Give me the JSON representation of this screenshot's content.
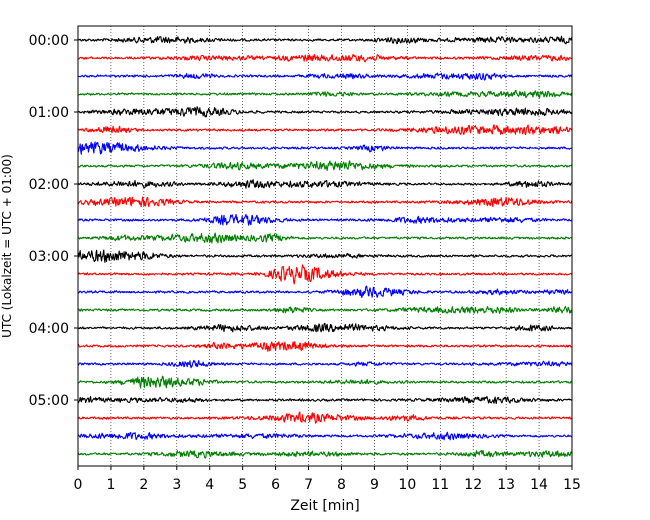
{
  "chart_data": {
    "type": "line",
    "xlabel": "Zeit  [min]",
    "ylabel": "UTC (Lokalzeit = UTC + 01:00)",
    "xlim": [
      0,
      15
    ],
    "x_ticks": [
      "0",
      "1",
      "2",
      "3",
      "4",
      "5",
      "6",
      "7",
      "8",
      "9",
      "10",
      "11",
      "12",
      "13",
      "14",
      "15"
    ],
    "y_ticks": [
      "00:00",
      "01:00",
      "02:00",
      "03:00",
      "04:00",
      "05:00"
    ],
    "grid": "vertical-dotted",
    "trace_colors": [
      "#000000",
      "#ff0000",
      "#0000ff",
      "#007f00"
    ],
    "traces_per_hour": 4,
    "trace_count": 24
  }
}
